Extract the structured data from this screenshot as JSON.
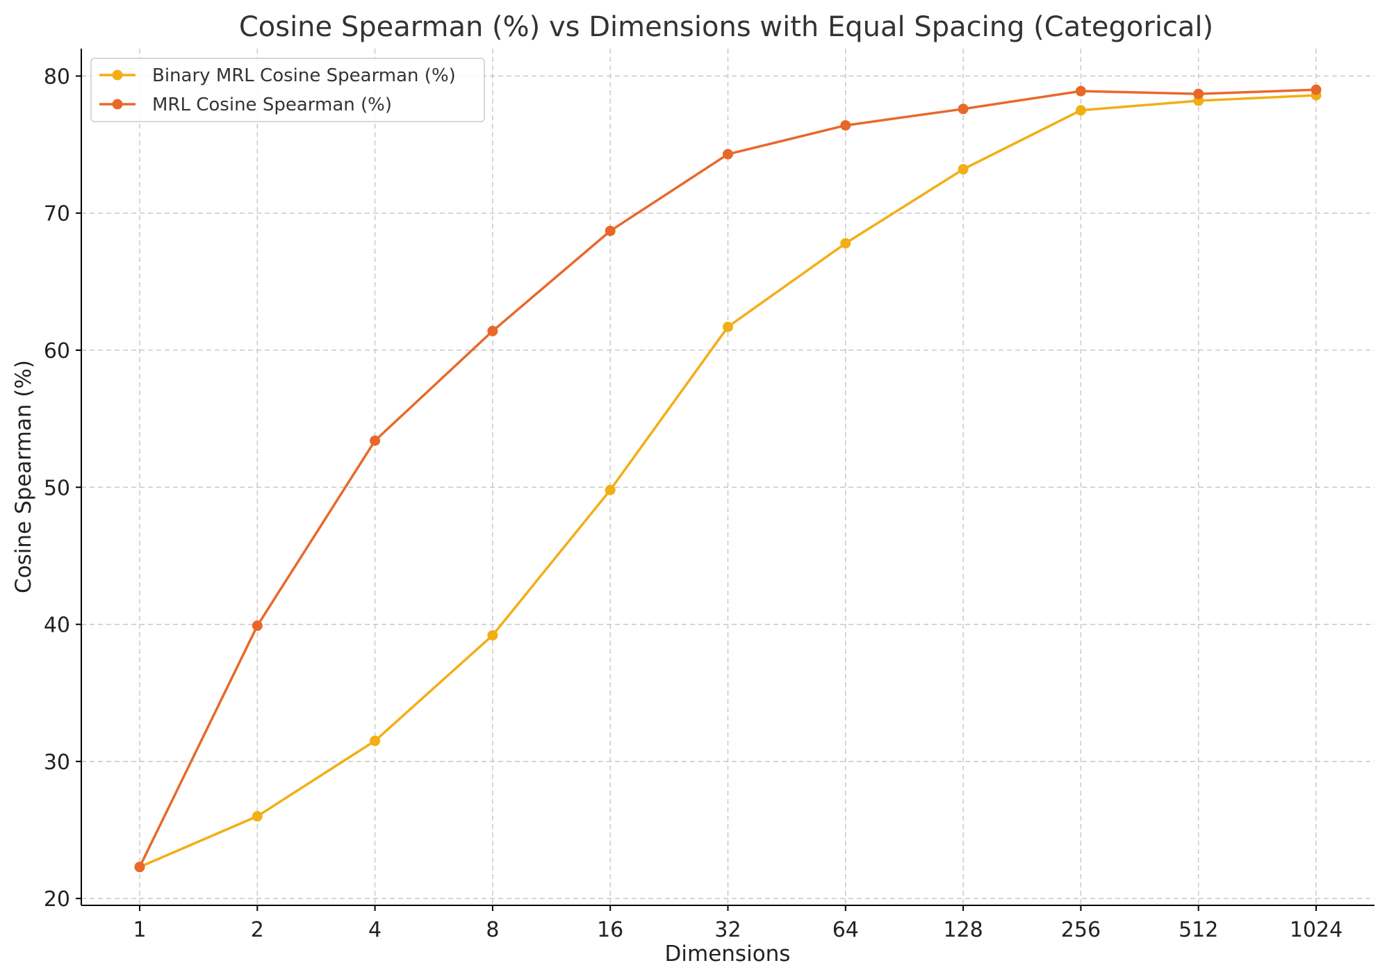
{
  "chart_data": {
    "type": "line",
    "title": "Cosine Spearman (%) vs Dimensions with Equal Spacing (Categorical)",
    "xlabel": "Dimensions",
    "ylabel": "Cosine Spearman (%)",
    "categories": [
      "1",
      "2",
      "4",
      "8",
      "16",
      "32",
      "64",
      "128",
      "256",
      "512",
      "1024"
    ],
    "ylim": [
      19.5,
      82
    ],
    "yticks": [
      "20",
      "30",
      "40",
      "50",
      "60",
      "70",
      "80"
    ],
    "grid": true,
    "legend_position": "top-left",
    "series": [
      {
        "name": "Binary MRL Cosine Spearman (%)",
        "color": "#F2AE15",
        "values": [
          22.3,
          26.0,
          31.5,
          39.2,
          49.8,
          61.7,
          67.8,
          73.2,
          77.5,
          78.2,
          78.6
        ]
      },
      {
        "name": "MRL Cosine Spearman (%)",
        "color": "#E8682A",
        "values": [
          22.3,
          39.9,
          53.4,
          61.4,
          68.7,
          74.3,
          76.4,
          77.6,
          78.9,
          78.7,
          79.0
        ]
      }
    ]
  }
}
